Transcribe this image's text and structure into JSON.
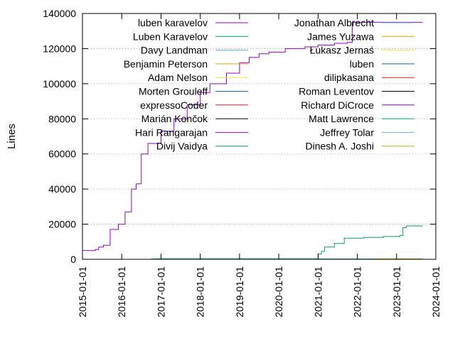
{
  "chart_data": {
    "type": "line",
    "title": "",
    "xlabel": "",
    "ylabel": "Lines",
    "x_axis": {
      "type": "date",
      "range": [
        "2015-01-01",
        "2024-01-01"
      ],
      "ticks": [
        "2015-01-01",
        "2016-01-01",
        "2017-01-01",
        "2018-01-01",
        "2019-01-01",
        "2020-01-01",
        "2021-01-01",
        "2022-01-01",
        "2023-01-01",
        "2024-01-01"
      ]
    },
    "y_axis": {
      "range": [
        0,
        140000
      ],
      "ticks": [
        0,
        20000,
        40000,
        60000,
        80000,
        100000,
        120000,
        140000
      ]
    },
    "grid": true,
    "legend_placement": "top, two columns",
    "series": [
      {
        "name": "luben karavelov",
        "color": "#9400d3",
        "points": [
          [
            "2015-01-01",
            5000
          ],
          [
            "2015-05-01",
            5600
          ],
          [
            "2015-06-01",
            7000
          ],
          [
            "2015-07-15",
            8000
          ],
          [
            "2015-09-15",
            17000
          ],
          [
            "2015-12-01",
            20000
          ],
          [
            "2016-02-01",
            27000
          ],
          [
            "2016-04-01",
            40000
          ],
          [
            "2016-05-15",
            43000
          ],
          [
            "2016-07-01",
            60000
          ],
          [
            "2016-09-01",
            66000
          ],
          [
            "2017-01-01",
            73000
          ],
          [
            "2017-05-01",
            80000
          ],
          [
            "2017-09-01",
            88000
          ],
          [
            "2018-01-01",
            95000
          ],
          [
            "2018-04-01",
            100000
          ],
          [
            "2018-09-01",
            106000
          ],
          [
            "2019-01-01",
            112000
          ],
          [
            "2019-04-01",
            115000
          ],
          [
            "2019-07-01",
            117000
          ],
          [
            "2019-10-01",
            118000
          ],
          [
            "2020-03-01",
            120000
          ],
          [
            "2020-09-01",
            121000
          ],
          [
            "2021-01-01",
            122000
          ],
          [
            "2021-06-01",
            123000
          ],
          [
            "2021-10-01",
            123500
          ],
          [
            "2021-11-15",
            135000
          ],
          [
            "2023-09-01",
            135000
          ]
        ]
      },
      {
        "name": "Luben Karavelov",
        "color": "#009e73",
        "points": []
      },
      {
        "name": "Davy Landman",
        "color": "#56b4e9",
        "points": []
      },
      {
        "name": "Benjamin Peterson",
        "color": "#e69f00",
        "points": []
      },
      {
        "name": "Adam Nelson",
        "color": "#f0e442",
        "points": []
      },
      {
        "name": "Morten Grouleff",
        "color": "#0072b2",
        "points": []
      },
      {
        "name": "expressoCoder",
        "color": "#e51e10",
        "points": []
      },
      {
        "name": "Marián Končok",
        "color": "#000000",
        "points": []
      },
      {
        "name": "Hari Rangarajan",
        "color": "#9400d3",
        "points": []
      },
      {
        "name": "Divij Vaidya",
        "color": "#009e73",
        "points": [
          [
            "2016-11-01",
            400
          ],
          [
            "2020-12-01",
            400
          ],
          [
            "2021-01-01",
            3000
          ],
          [
            "2021-02-01",
            4500
          ],
          [
            "2021-03-01",
            7000
          ],
          [
            "2021-06-01",
            9000
          ],
          [
            "2021-09-01",
            12000
          ],
          [
            "2022-03-01",
            12500
          ],
          [
            "2022-09-01",
            13000
          ],
          [
            "2023-02-01",
            13500
          ],
          [
            "2023-03-01",
            18000
          ],
          [
            "2023-04-01",
            19000
          ],
          [
            "2023-09-01",
            19000
          ]
        ]
      },
      {
        "name": "Jonathan Albrecht",
        "color": "#56b4e9",
        "points": [
          [
            "2016-10-01",
            300
          ],
          [
            "2023-09-01",
            300
          ]
        ]
      },
      {
        "name": "James Yuzawa",
        "color": "#e69f00",
        "points": [
          [
            "2022-06-01",
            200
          ],
          [
            "2023-09-01",
            400
          ]
        ]
      },
      {
        "name": "Łukasz Jernaś",
        "color": "#f0e442",
        "points": []
      },
      {
        "name": "luben",
        "color": "#0072b2",
        "points": []
      },
      {
        "name": "dilipkasana",
        "color": "#e51e10",
        "points": []
      },
      {
        "name": "Roman Leventov",
        "color": "#000000",
        "points": []
      },
      {
        "name": "Richard DiCroce",
        "color": "#9400d3",
        "points": []
      },
      {
        "name": "Matt Lawrence",
        "color": "#009e73",
        "points": []
      },
      {
        "name": "Jeffrey Tolar",
        "color": "#56b4e9",
        "points": []
      },
      {
        "name": "Dinesh A. Joshi",
        "color": "#e69f00",
        "points": []
      }
    ]
  }
}
